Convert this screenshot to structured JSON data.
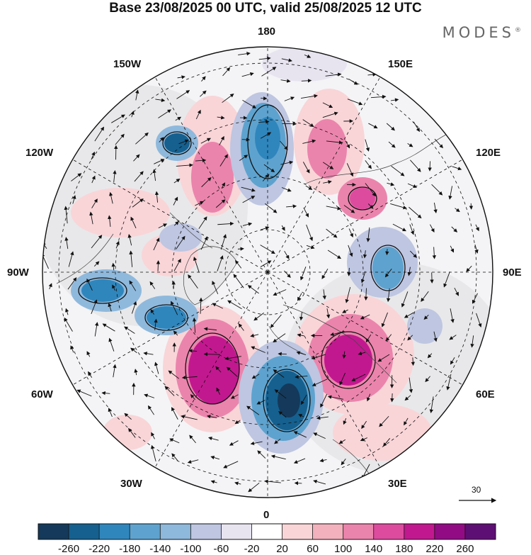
{
  "header": {
    "title": "Base 23/08/2025 00 UTC, valid 25/08/2025 12 UTC",
    "brand": "MODES",
    "brand_mark": "®"
  },
  "map": {
    "projection": "north polar stereographic",
    "longitude_labels": {
      "top": "180",
      "bottom": "0",
      "left": "90W",
      "right": "90E",
      "upper_left_1": "150W",
      "upper_left_2": "120W",
      "lower_left_1": "60W",
      "lower_left_2": "30W",
      "upper_right_1": "150E",
      "upper_right_2": "120E",
      "lower_right_1": "60E",
      "lower_right_2": "30E"
    },
    "reference_vector": {
      "label": "30"
    }
  },
  "colorbar": {
    "ticks": [
      "-260",
      "-220",
      "-180",
      "-140",
      "-100",
      "-60",
      "-20",
      "20",
      "60",
      "100",
      "140",
      "180",
      "220",
      "260"
    ],
    "colors": [
      "#14395a",
      "#15608f",
      "#2f86bd",
      "#5ea3cf",
      "#8fb9dc",
      "#bec6e1",
      "#e7e4f0",
      "#ffffff",
      "#f9d5d8",
      "#f3b1bd",
      "#eb84ac",
      "#dd4b9f",
      "#c2188f",
      "#920b85",
      "#5e0f74"
    ]
  }
}
